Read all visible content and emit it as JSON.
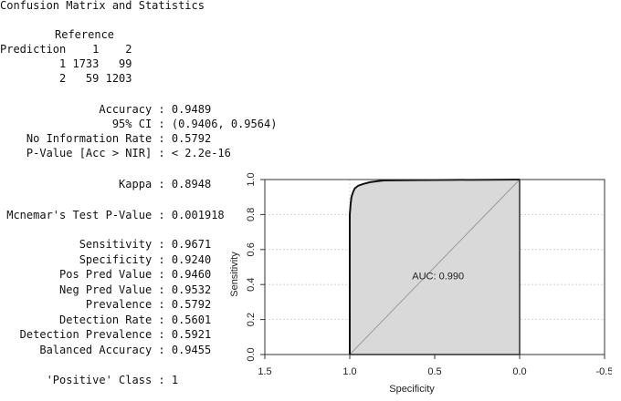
{
  "title": "Confusion Matrix and Statistics",
  "confusion_matrix": {
    "reference_label": "Reference",
    "prediction_label": "Prediction",
    "header": [
      "1",
      "2"
    ],
    "rows": [
      {
        "label": "1",
        "values": [
          "1733",
          "99"
        ]
      },
      {
        "label": "2",
        "values": [
          "59",
          "1203"
        ]
      }
    ]
  },
  "stats_block_1": [
    {
      "label": "Accuracy",
      "value": "0.9489"
    },
    {
      "label": "95% CI",
      "value": "(0.9406, 0.9564)"
    },
    {
      "label": "No Information Rate",
      "value": "0.5792"
    },
    {
      "label": "P-Value [Acc > NIR]",
      "value": "< 2.2e-16"
    }
  ],
  "kappa": {
    "label": "Kappa",
    "value": "0.8948"
  },
  "mcnemar": {
    "label": "Mcnemar's Test P-Value",
    "value": "0.001918"
  },
  "stats_block_2": [
    {
      "label": "Sensitivity",
      "value": "0.9671"
    },
    {
      "label": "Specificity",
      "value": "0.9240"
    },
    {
      "label": "Pos Pred Value",
      "value": "0.9460"
    },
    {
      "label": "Neg Pred Value",
      "value": "0.9532"
    },
    {
      "label": "Prevalence",
      "value": "0.5792"
    },
    {
      "label": "Detection Rate",
      "value": "0.5601"
    },
    {
      "label": "Detection Prevalence",
      "value": "0.5921"
    },
    {
      "label": "Balanced Accuracy",
      "value": "0.9455"
    }
  ],
  "positive_class": {
    "label": "'Positive' Class",
    "value": "1"
  },
  "chart_data": {
    "type": "line",
    "xlabel": "Specificity",
    "ylabel": "Sensitivity",
    "xlim": [
      1.5,
      -0.5
    ],
    "ylim": [
      0,
      1
    ],
    "x_ticks": [
      "1.5",
      "1.0",
      "0.5",
      "0.0",
      "-0.5"
    ],
    "y_ticks": [
      "0.0",
      "0.2",
      "0.4",
      "0.6",
      "0.8",
      "1.0"
    ],
    "grid": true,
    "annotation": "AUC: 0.990",
    "auc": 0.99,
    "fill_color": "#d9d9d9",
    "roc_curve": {
      "x": [
        1.0,
        1.0,
        0.995,
        0.99,
        0.98,
        0.97,
        0.95,
        0.92,
        0.88,
        0.84,
        0.8,
        0.6,
        0.4,
        0.2,
        0.0
      ],
      "y": [
        0.0,
        0.8,
        0.86,
        0.9,
        0.93,
        0.95,
        0.965,
        0.975,
        0.985,
        0.99,
        0.995,
        0.997,
        0.998,
        0.999,
        1.0
      ]
    },
    "reference_line": {
      "x": [
        1.0,
        0.0
      ],
      "y": [
        0.0,
        1.0
      ]
    }
  }
}
